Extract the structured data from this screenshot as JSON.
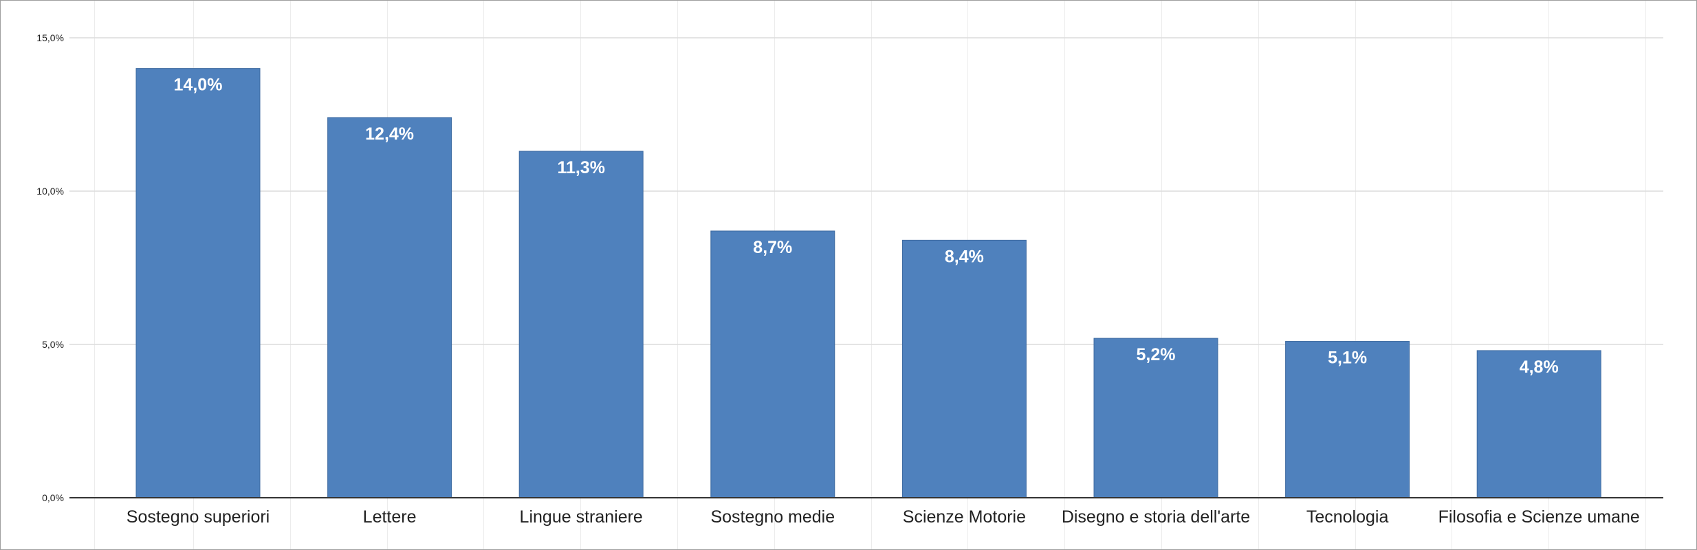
{
  "chart_data": {
    "type": "bar",
    "title": "",
    "xlabel": "",
    "ylabel": "",
    "categories": [
      "Sostegno superiori",
      "Lettere",
      "Lingue straniere",
      "Sostegno medie",
      "Scienze Motorie",
      "Disegno e storia dell'arte",
      "Tecnologia",
      "Filosofia e Scienze umane"
    ],
    "values": [
      14.0,
      12.4,
      11.3,
      8.7,
      8.4,
      5.2,
      5.1,
      4.8
    ],
    "data_labels": [
      "14,0%",
      "12,4%",
      "11,3%",
      "8,7%",
      "8,4%",
      "5,2%",
      "5,1%",
      "4,8%"
    ],
    "ylim": [
      0,
      15
    ],
    "yticks": [
      0,
      5,
      10,
      15
    ],
    "ytick_labels": [
      "0,0%",
      "5,0%",
      "10,0%",
      "15,0%"
    ],
    "grid": true,
    "legend": "none",
    "bar_color": "#4f81bd"
  }
}
